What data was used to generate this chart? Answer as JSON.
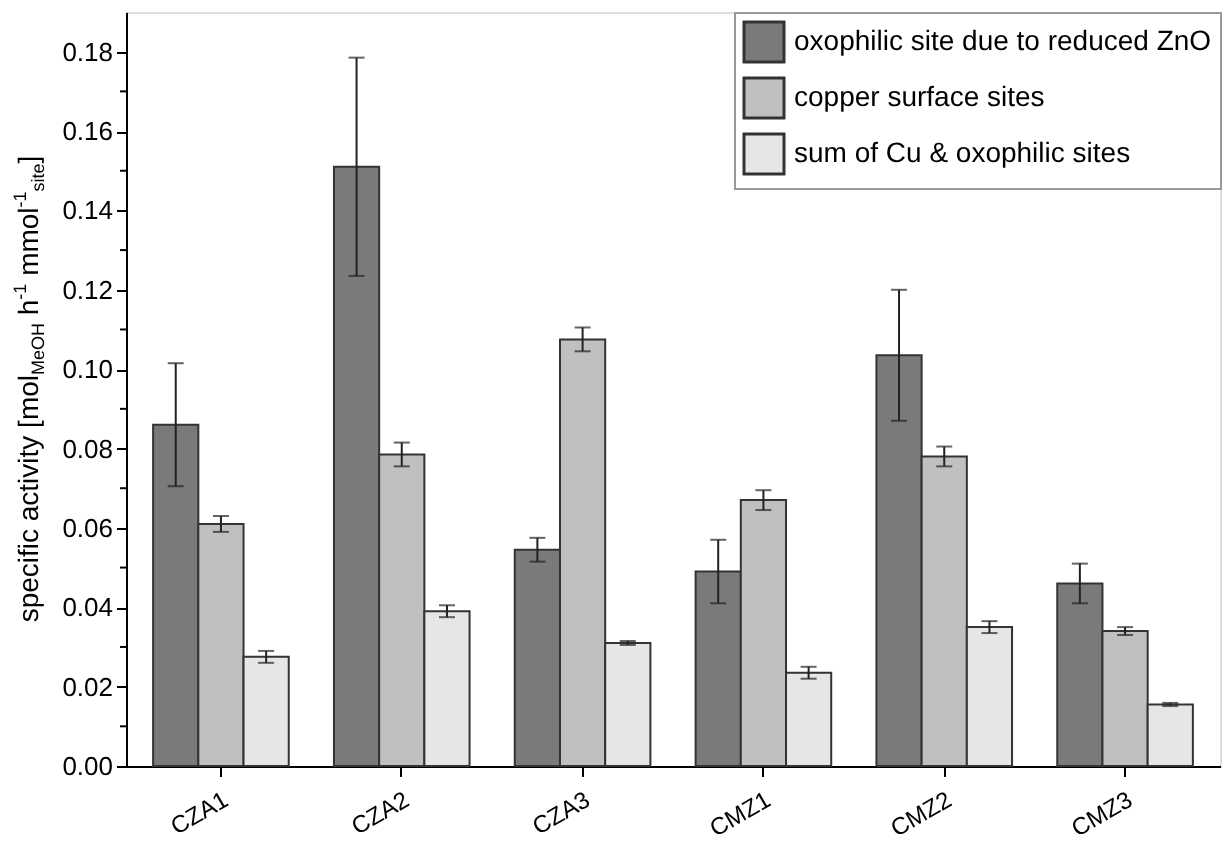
{
  "chart_data": {
    "type": "bar",
    "ylabel": "specific activity [mol$_{MeOH}$ h$^{-1}$ mmol$^{-1}$$_{site}$]",
    "categories": [
      "CZA1",
      "CZA2",
      "CZA3",
      "CMZ1",
      "CMZ2",
      "CMZ3"
    ],
    "series": [
      {
        "name": "oxophilic site due to reduced ZnO",
        "color": "#7a7a7a",
        "values": [
          0.086,
          0.151,
          0.0545,
          0.049,
          0.1035,
          0.046
        ],
        "errors": [
          0.0155,
          0.0275,
          0.003,
          0.008,
          0.0165,
          0.005
        ]
      },
      {
        "name": "copper surface sites",
        "color": "#c0c0c0",
        "values": [
          0.061,
          0.0785,
          0.1075,
          0.067,
          0.078,
          0.034
        ],
        "errors": [
          0.002,
          0.003,
          0.003,
          0.0025,
          0.0025,
          0.001
        ]
      },
      {
        "name": "sum of Cu & oxophilic sites",
        "color": "#e6e6e6",
        "values": [
          0.0275,
          0.039,
          0.031,
          0.0235,
          0.035,
          0.0155
        ],
        "errors": [
          0.0015,
          0.0015,
          0.0005,
          0.0015,
          0.0015,
          0.0004
        ]
      }
    ],
    "ylim": [
      0,
      0.19
    ],
    "yticks": [
      {
        "value": 0,
        "label": "0.00"
      },
      {
        "value": 0.01,
        "label": null
      },
      {
        "value": 0.02,
        "label": "0.02"
      },
      {
        "value": 0.03,
        "label": null
      },
      {
        "value": 0.04,
        "label": "0.04"
      },
      {
        "value": 0.05,
        "label": null
      },
      {
        "value": 0.06,
        "label": "0.06"
      },
      {
        "value": 0.07,
        "label": null
      },
      {
        "value": 0.08,
        "label": "0.08"
      },
      {
        "value": 0.09,
        "label": null
      },
      {
        "value": 0.1,
        "label": "0.10"
      },
      {
        "value": 0.11,
        "label": null
      },
      {
        "value": 0.12,
        "label": "0.12"
      },
      {
        "value": 0.13,
        "label": null
      },
      {
        "value": 0.14,
        "label": "0.14"
      },
      {
        "value": 0.15,
        "label": null
      },
      {
        "value": 0.16,
        "label": "0.16"
      },
      {
        "value": 0.17,
        "label": null
      },
      {
        "value": 0.18,
        "label": "0.18"
      }
    ],
    "grid": false,
    "legend": "top right"
  }
}
